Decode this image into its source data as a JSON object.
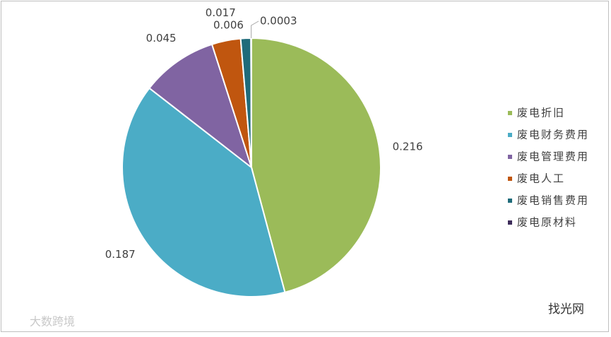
{
  "chart_data": {
    "type": "pie",
    "categories": [
      "废电折旧",
      "废电财务费用",
      "废电管理费用",
      "废电人工",
      "废电销售费用",
      "废电原材料"
    ],
    "values": [
      0.216,
      0.187,
      0.045,
      0.017,
      0.006,
      0.0003
    ],
    "colors": [
      "#9bbb59",
      "#4bacc6",
      "#8064a2",
      "#c0560f",
      "#1f6b7a",
      "#3d2c5a"
    ],
    "legend": "right",
    "watermarks": [
      "大数跨境",
      "找光网"
    ]
  }
}
